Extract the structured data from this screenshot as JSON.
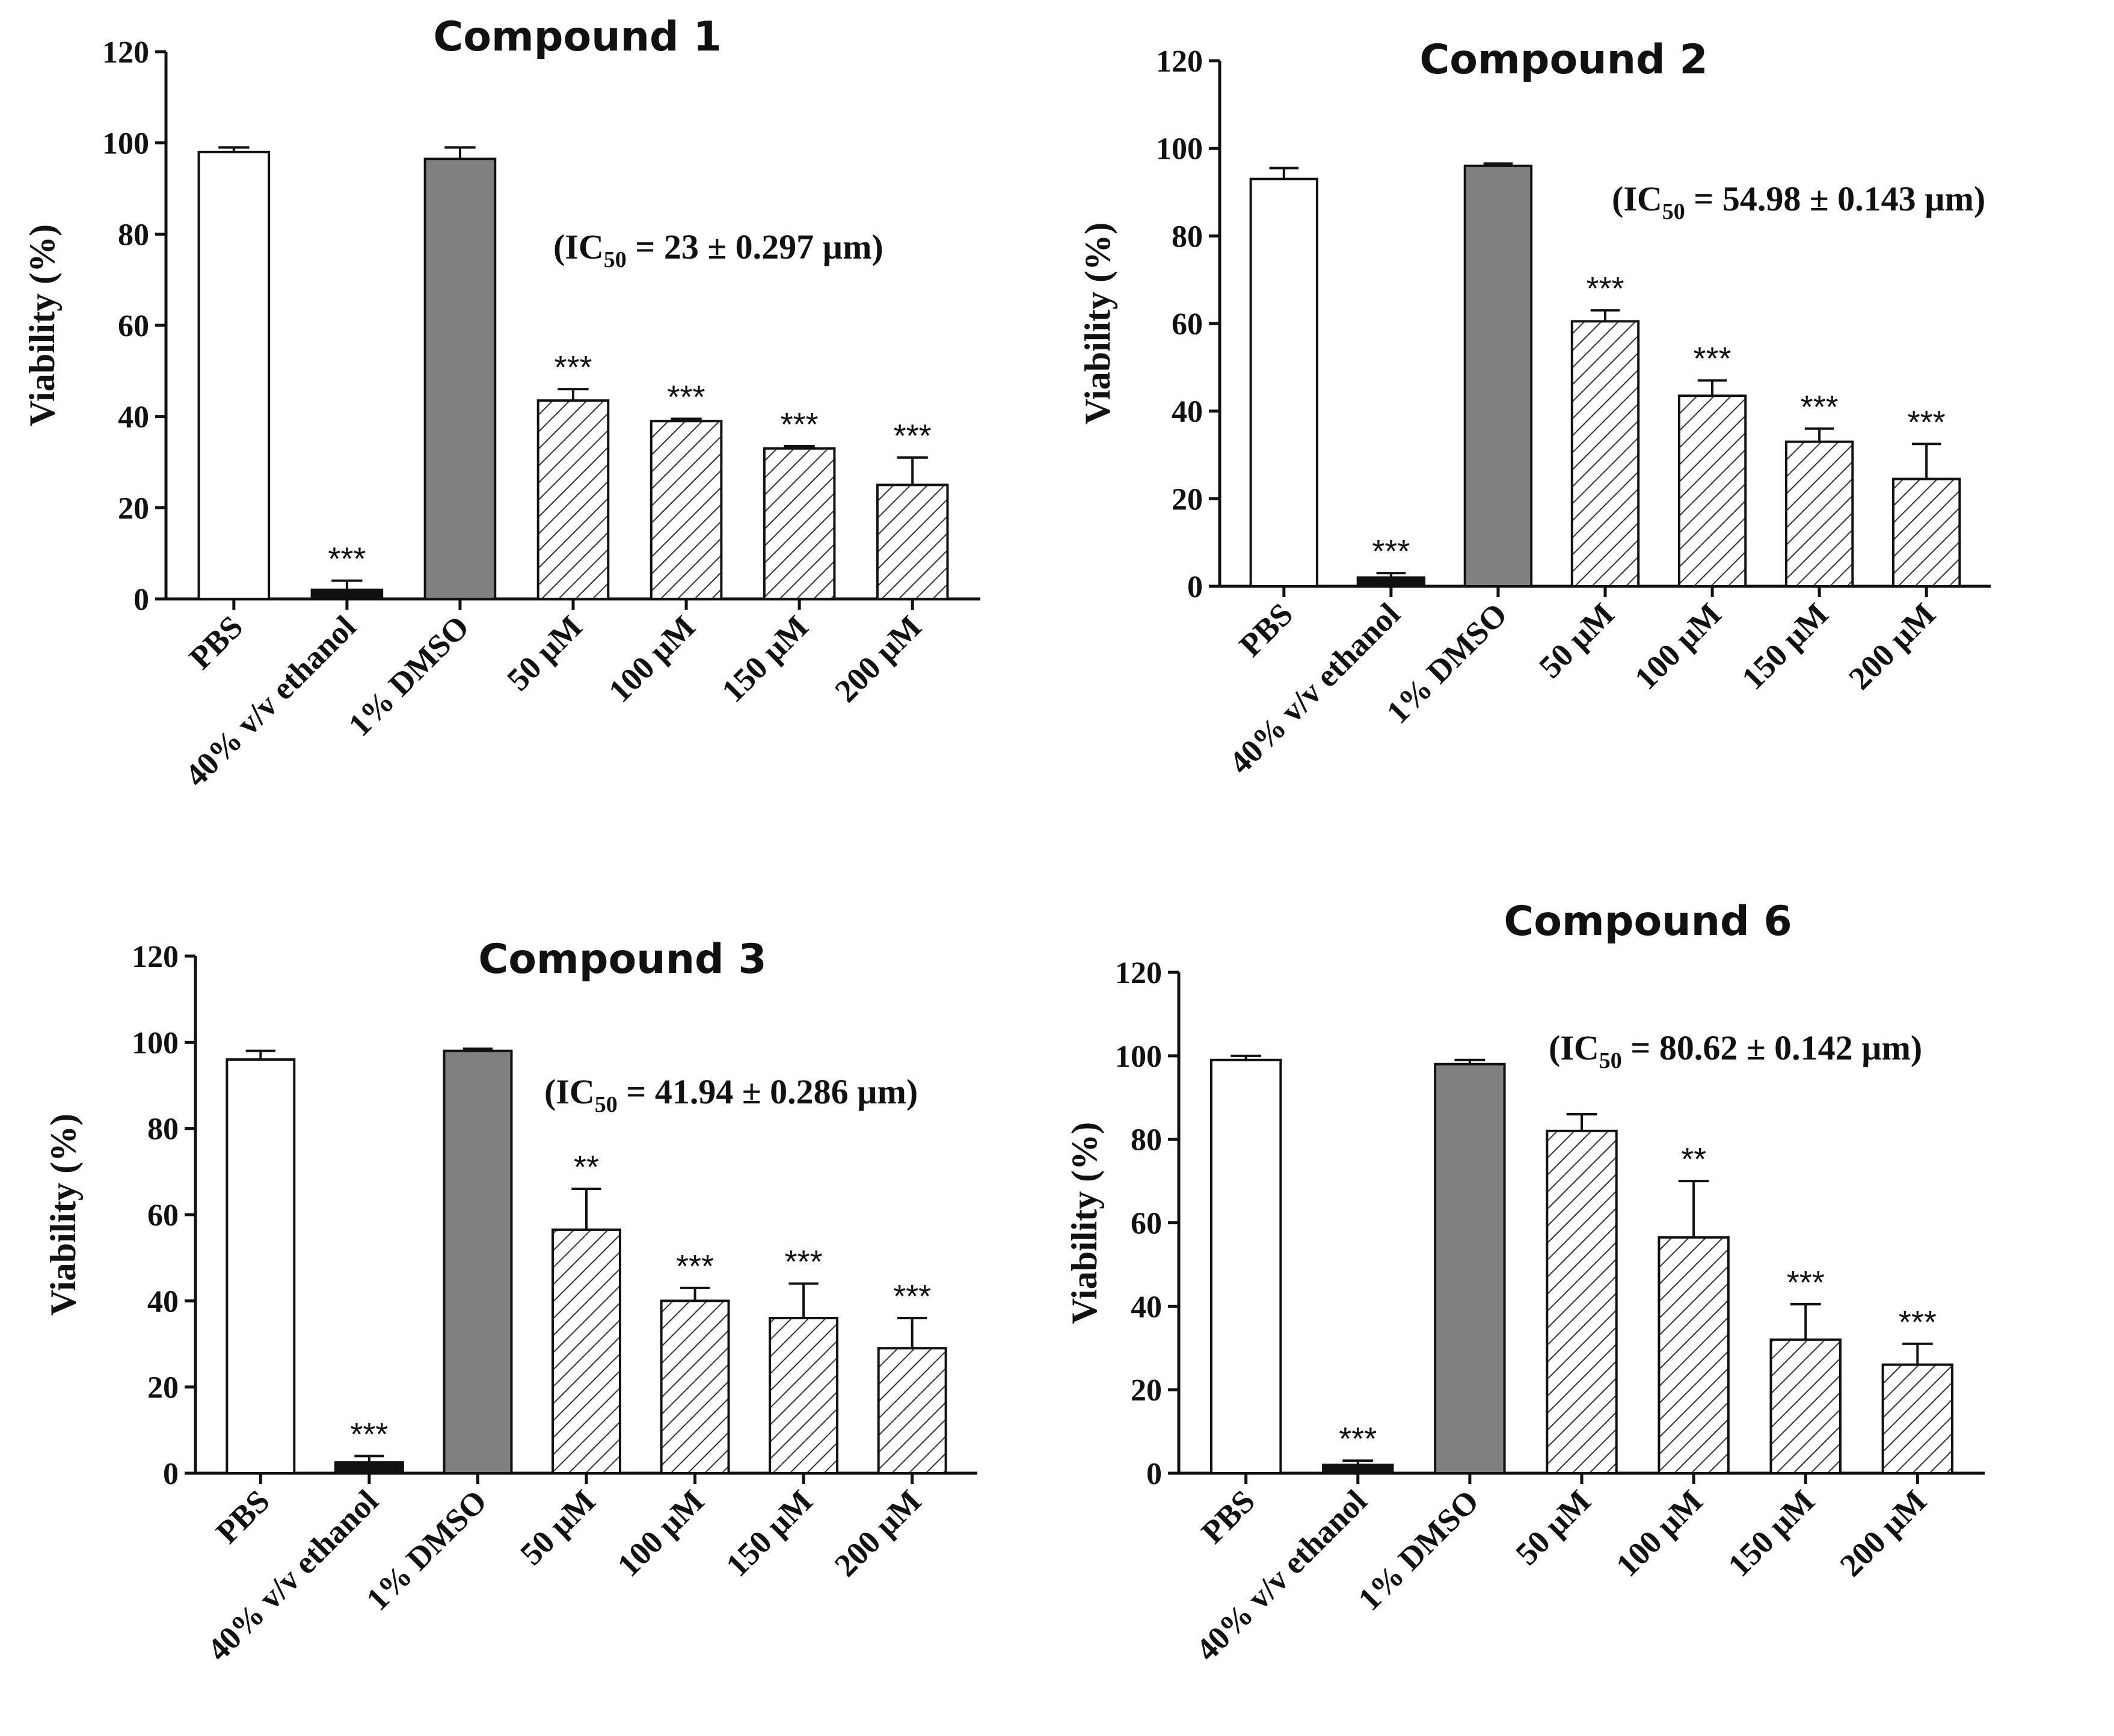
{
  "chart_data": [
    {
      "type": "bar",
      "title": "Compound 1",
      "ic50_label": "(IC",
      "ic50_sub": "50",
      "ic50_value": " = 23 ± 0.297 µm)",
      "ylabel": "Viability (%)",
      "ylim": [
        0,
        120
      ],
      "yticks": [
        "0",
        "20",
        "40",
        "60",
        "80",
        "100",
        "120"
      ],
      "categories": [
        "PBS",
        "40% v/v ethanol",
        "1% DMSO",
        "50 µM",
        "100 µM",
        "150 µM",
        "200 µM"
      ],
      "values": [
        98,
        2,
        96.5,
        43.5,
        39,
        33,
        25
      ],
      "errors": [
        1,
        2,
        2.5,
        2.5,
        0.5,
        0.5,
        6
      ],
      "significance": [
        "",
        "***",
        "",
        "***",
        "***",
        "***",
        "***"
      ],
      "fills": [
        "white",
        "black",
        "gray",
        "hatch",
        "hatch",
        "hatch",
        "hatch"
      ]
    },
    {
      "type": "bar",
      "title": "Compound 2",
      "ic50_label": "(IC",
      "ic50_sub": "50",
      "ic50_value": " = 54.98 ± 0.143 µm)",
      "ylabel": "Viability (%)",
      "ylim": [
        0,
        120
      ],
      "yticks": [
        "0",
        "20",
        "40",
        "60",
        "80",
        "100",
        "120"
      ],
      "categories": [
        "PBS",
        "40% v/v ethanol",
        "1% DMSO",
        "50 µM",
        "100 µM",
        "150 µM",
        "200 µM"
      ],
      "values": [
        93,
        2,
        96,
        60.5,
        43.5,
        33,
        24.5
      ],
      "errors": [
        2.5,
        1,
        0.5,
        2.5,
        3.5,
        3,
        8
      ],
      "significance": [
        "",
        "***",
        "",
        "***",
        "***",
        "***",
        "***"
      ],
      "fills": [
        "white",
        "black",
        "gray",
        "hatch",
        "hatch",
        "hatch",
        "hatch"
      ]
    },
    {
      "type": "bar",
      "title": "Compound 3",
      "ic50_label": "(IC",
      "ic50_sub": "50",
      "ic50_value": " = 41.94 ± 0.286 µm)",
      "ylabel": "Viability (%)",
      "ylim": [
        0,
        120
      ],
      "yticks": [
        "0",
        "20",
        "40",
        "60",
        "80",
        "100",
        "120"
      ],
      "categories": [
        "PBS",
        "40% v/v ethanol",
        "1% DMSO",
        "50 µM",
        "100 µM",
        "150 µM",
        "200 µM"
      ],
      "values": [
        96,
        2.5,
        98,
        56.5,
        40,
        36,
        29
      ],
      "errors": [
        2,
        1.5,
        0.5,
        9.5,
        3,
        8,
        7
      ],
      "significance": [
        "",
        "***",
        "",
        "**",
        "***",
        "***",
        "***"
      ],
      "fills": [
        "white",
        "black",
        "gray",
        "hatch",
        "hatch",
        "hatch",
        "hatch"
      ]
    },
    {
      "type": "bar",
      "title": "Compound 6",
      "ic50_label": "(IC",
      "ic50_sub": "50",
      "ic50_value": " = 80.62 ± 0.142 µm)",
      "ylabel": "Viability (%)",
      "ylim": [
        0,
        120
      ],
      "yticks": [
        "0",
        "20",
        "40",
        "60",
        "80",
        "100",
        "120"
      ],
      "categories": [
        "PBS",
        "40% v/v ethanol",
        "1% DMSO",
        "50 µM",
        "100 µM",
        "150 µM",
        "200 µM"
      ],
      "values": [
        99,
        2,
        98,
        82,
        56.5,
        32,
        26
      ],
      "errors": [
        1,
        1,
        1,
        4,
        13.5,
        8.5,
        5
      ],
      "significance": [
        "",
        "***",
        "",
        "",
        "**",
        "***",
        "***"
      ],
      "fills": [
        "white",
        "black",
        "gray",
        "hatch",
        "hatch",
        "hatch",
        "hatch"
      ]
    }
  ]
}
